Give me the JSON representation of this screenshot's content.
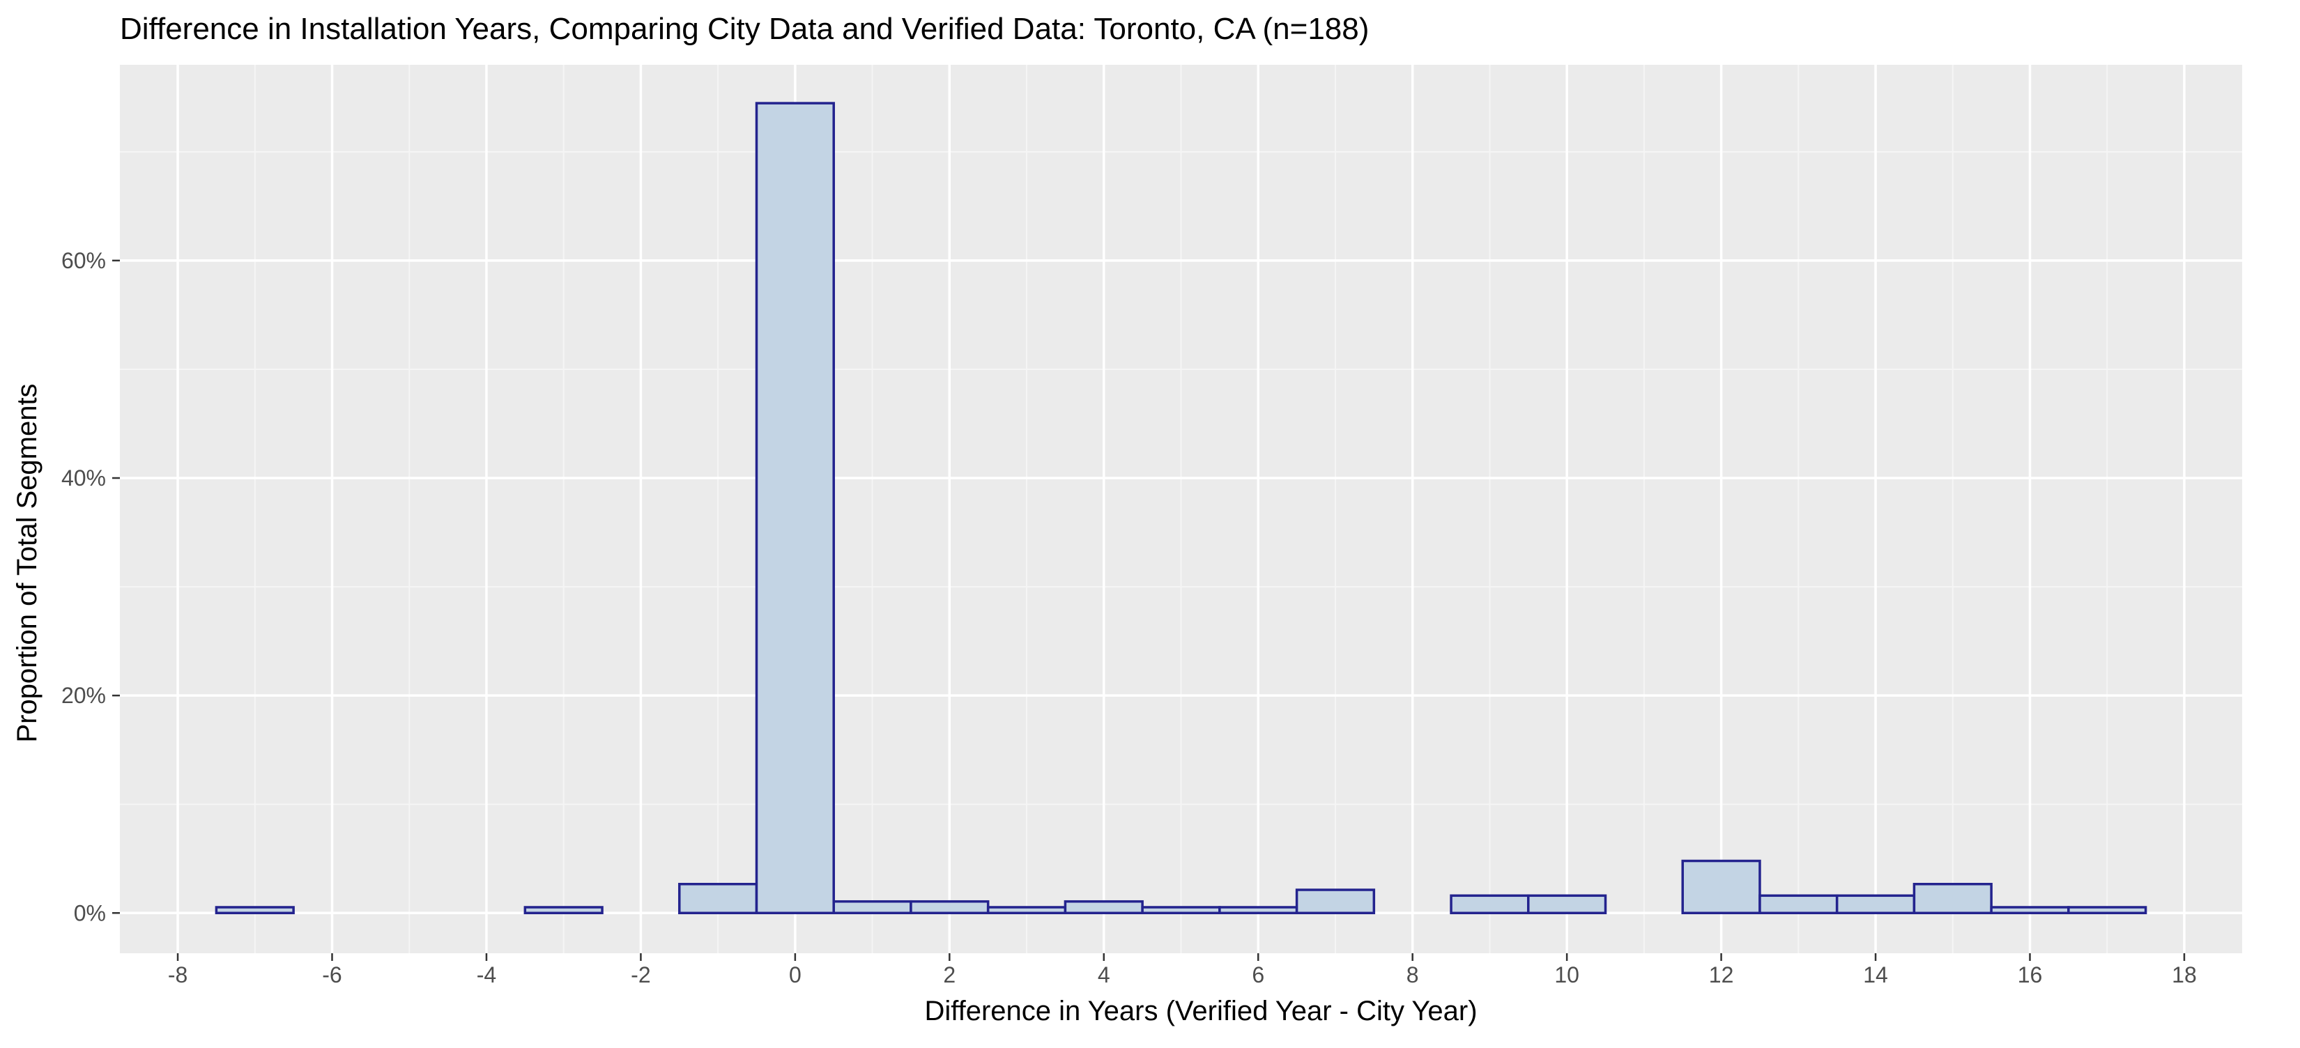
{
  "chart_data": {
    "type": "bar",
    "title": "Difference in Installation Years, Comparing City Data and Verified Data: Toronto, CA (n=188)",
    "xlabel": "Difference in Years (Verified Year - City Year)",
    "ylabel": "Proportion of Total Segments",
    "xlim": [
      -8.75,
      18.75
    ],
    "ylim": [
      -0.037,
      0.78
    ],
    "x_ticks": [
      -8,
      -6,
      -4,
      -2,
      0,
      2,
      4,
      6,
      8,
      10,
      12,
      14,
      16,
      18
    ],
    "x_tick_labels": [
      "-8",
      "-6",
      "-4",
      "-2",
      "0",
      "2",
      "4",
      "6",
      "8",
      "10",
      "12",
      "14",
      "16",
      "18"
    ],
    "y_ticks": [
      0,
      0.2,
      0.4,
      0.6
    ],
    "y_tick_labels": [
      "0%",
      "20%",
      "40%",
      "60%"
    ],
    "bin_width": 1,
    "x": [
      -7,
      -3,
      -1,
      0,
      1,
      2,
      3,
      4,
      5,
      6,
      7,
      9,
      10,
      12,
      13,
      14,
      15,
      16,
      17
    ],
    "values": [
      0.0053,
      0.0053,
      0.0266,
      0.7447,
      0.0106,
      0.0106,
      0.0053,
      0.0106,
      0.0053,
      0.0053,
      0.0213,
      0.016,
      0.016,
      0.0479,
      0.016,
      0.016,
      0.0266,
      0.0053,
      0.0053
    ],
    "grid": true,
    "colors": {
      "panel": "#EBEBEB",
      "grid_major": "#FFFFFF",
      "grid_minor": "#F5F5F5",
      "bar_fill": "#C3D4E4",
      "bar_stroke": "#23238E",
      "tick": "#333333",
      "text": "#000000"
    }
  }
}
